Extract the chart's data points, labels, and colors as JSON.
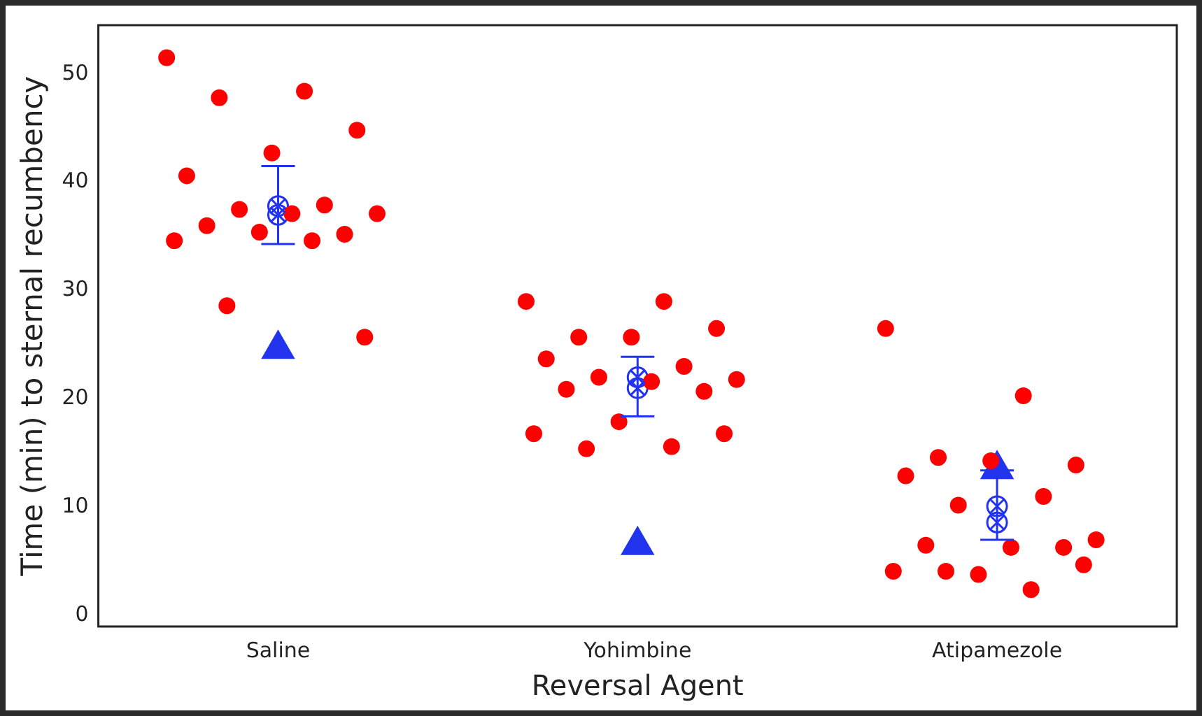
{
  "chart_data": {
    "type": "scatter",
    "xlabel": "Reversal Agent",
    "ylabel": "Time (min) to sternal recumbency",
    "categories": [
      "Saline",
      "Yohimbine",
      "Atipamezole"
    ],
    "ylim": [
      -1,
      54.5
    ],
    "yticks": [
      0,
      10,
      20,
      30,
      40,
      50
    ],
    "legend": false,
    "series": [
      {
        "color": "#ff0000",
        "marker": "circle",
        "x": [
          "Saline",
          "Saline",
          "Saline",
          "Saline",
          "Saline",
          "Saline",
          "Saline",
          "Saline",
          "Saline",
          "Saline",
          "Saline",
          "Saline",
          "Saline",
          "Saline",
          "Saline",
          "Saline",
          "Saline",
          "Yohimbine",
          "Yohimbine",
          "Yohimbine",
          "Yohimbine",
          "Yohimbine",
          "Yohimbine",
          "Yohimbine",
          "Yohimbine",
          "Yohimbine",
          "Yohimbine",
          "Yohimbine",
          "Yohimbine",
          "Yohimbine",
          "Yohimbine",
          "Yohimbine",
          "Yohimbine",
          "Yohimbine",
          "Atipamezole",
          "Atipamezole",
          "Atipamezole",
          "Atipamezole",
          "Atipamezole",
          "Atipamezole",
          "Atipamezole",
          "Atipamezole",
          "Atipamezole",
          "Atipamezole",
          "Atipamezole",
          "Atipamezole",
          "Atipamezole",
          "Atipamezole",
          "Atipamezole",
          "Atipamezole",
          "Atipamezole"
        ],
        "values": [
          51.5,
          48.4,
          47.8,
          44.8,
          42.7,
          40.6,
          37.9,
          37.5,
          37.1,
          37.1,
          36.0,
          35.2,
          35.4,
          34.6,
          34.6,
          28.6,
          25.7,
          29.0,
          29.0,
          25.7,
          26.5,
          25.7,
          23.7,
          23.0,
          22.0,
          21.8,
          21.6,
          20.9,
          20.7,
          17.9,
          16.8,
          15.6,
          15.4,
          16.8,
          26.5,
          20.3,
          14.6,
          13.9,
          14.3,
          12.9,
          11.0,
          10.2,
          7.0,
          6.3,
          6.5,
          6.3,
          3.8,
          4.1,
          2.4,
          4.1,
          4.7
        ]
      },
      {
        "color": "#2233ee",
        "marker": "triangle",
        "x": [
          "Saline",
          "Yohimbine",
          "Atipamezole"
        ],
        "values": [
          24.6,
          6.5,
          13.5
        ]
      },
      {
        "color": "#2233ee",
        "marker": "circle",
        "x": [
          "Saline",
          "Yohimbine",
          "Atipamezole"
        ],
        "values": [
          37.8,
          21.0,
          10.1
        ],
        "errors": [
          [
            34.3,
            41.5
          ],
          [
            18.4,
            23.9
          ],
          [
            7.0,
            13.4
          ]
        ]
      },
      {
        "color": "#2233ee",
        "marker": "circle",
        "x": [
          "Saline",
          "Yohimbine",
          "Atipamezole"
        ],
        "values": [
          37.0,
          22.0,
          8.6
        ]
      }
    ]
  }
}
